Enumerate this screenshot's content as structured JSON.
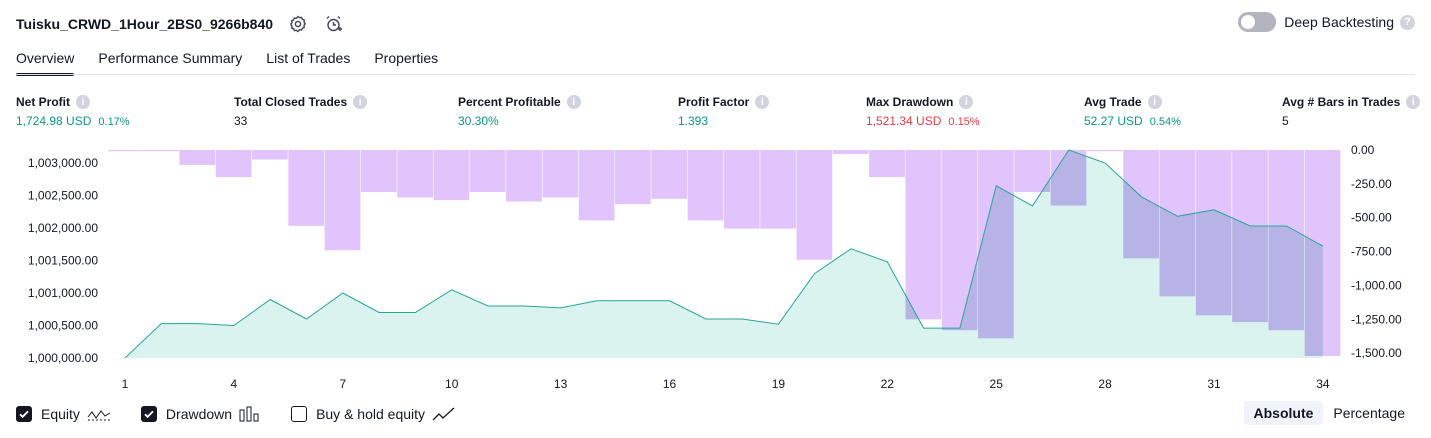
{
  "header": {
    "title": "Tuisku_CRWD_1Hour_2BS0_9266b840",
    "deep_backtesting_label": "Deep Backtesting"
  },
  "tabs": [
    {
      "label": "Overview",
      "active": true
    },
    {
      "label": "Performance Summary"
    },
    {
      "label": "List of Trades"
    },
    {
      "label": "Properties"
    }
  ],
  "metrics": [
    {
      "label": "Net Profit",
      "value": "1,724.98 USD",
      "sub": "0.17%",
      "color": "green"
    },
    {
      "label": "Total Closed Trades",
      "value": "33",
      "sub": "",
      "color": "black"
    },
    {
      "label": "Percent Profitable",
      "value": "30.30%",
      "sub": "",
      "color": "green"
    },
    {
      "label": "Profit Factor",
      "value": "1.393",
      "sub": "",
      "color": "green"
    },
    {
      "label": "Max Drawdown",
      "value": "1,521.34 USD",
      "sub": "0.15%",
      "color": "red"
    },
    {
      "label": "Avg Trade",
      "value": "52.27 USD",
      "sub": "0.54%",
      "color": "green"
    },
    {
      "label": "Avg # Bars in Trades",
      "value": "5",
      "sub": "",
      "color": "black"
    }
  ],
  "chart_data": {
    "type": "line",
    "x_ticks": [
      1,
      4,
      7,
      10,
      13,
      16,
      19,
      22,
      25,
      28,
      31,
      34
    ],
    "left_axis_ticks": [
      "1,003,000.00",
      "1,002,500.00",
      "1,002,000.00",
      "1,001,500.00",
      "1,001,000.00",
      "1,000,500.00",
      "1,000,000.00"
    ],
    "right_axis_ticks": [
      "0.00",
      "-250.00",
      "-500.00",
      "-750.00",
      "-1,000.00",
      "-1,250.00",
      "-1,500.00"
    ],
    "left_ylim": [
      1000000,
      1003200
    ],
    "right_ylim": [
      -1550,
      0
    ],
    "equity": {
      "x": [
        1,
        2,
        3,
        4,
        5,
        6,
        7,
        8,
        9,
        10,
        11,
        12,
        13,
        14,
        15,
        16,
        17,
        18,
        19,
        20,
        21,
        22,
        23,
        24,
        25,
        26,
        27,
        28,
        29,
        30,
        31,
        32,
        33,
        34
      ],
      "values": [
        1000000,
        1000530,
        1000530,
        1000500,
        1000900,
        1000600,
        1001000,
        1000700,
        1000700,
        1001050,
        1000800,
        1000800,
        1000770,
        1000880,
        1000880,
        1000880,
        1000600,
        1000600,
        1000520,
        1001300,
        1001680,
        1001480,
        1000460,
        1000460,
        1002650,
        1002340,
        1003200,
        1003000,
        1002480,
        1002180,
        1002280,
        1002030,
        1002030,
        1001720
      ]
    },
    "drawdown": {
      "x": [
        1,
        2,
        3,
        4,
        5,
        6,
        7,
        8,
        9,
        10,
        11,
        12,
        13,
        14,
        15,
        16,
        17,
        18,
        19,
        20,
        21,
        22,
        23,
        24,
        25,
        26,
        27,
        28,
        29,
        30,
        31,
        32,
        33,
        34
      ],
      "values": [
        0,
        0,
        -110,
        -200,
        -70,
        -560,
        -740,
        -310,
        -350,
        -370,
        -310,
        -380,
        -350,
        -520,
        -400,
        -360,
        -520,
        -580,
        -580,
        -810,
        -30,
        -200,
        -1250,
        -1330,
        -1390,
        -310,
        -410,
        0,
        -800,
        -1080,
        -1220,
        -1270,
        -1330,
        -1520
      ]
    },
    "colors": {
      "equity_line": "#26a69a",
      "equity_fill": "#d5f1eb",
      "drawdown_fill": "#e2c4fc",
      "drawdown_overlap": "#b7b3e6"
    }
  },
  "footer": {
    "equity_label": "Equity",
    "drawdown_label": "Drawdown",
    "buy_hold_label": "Buy & hold equity",
    "absolute_label": "Absolute",
    "percentage_label": "Percentage"
  }
}
